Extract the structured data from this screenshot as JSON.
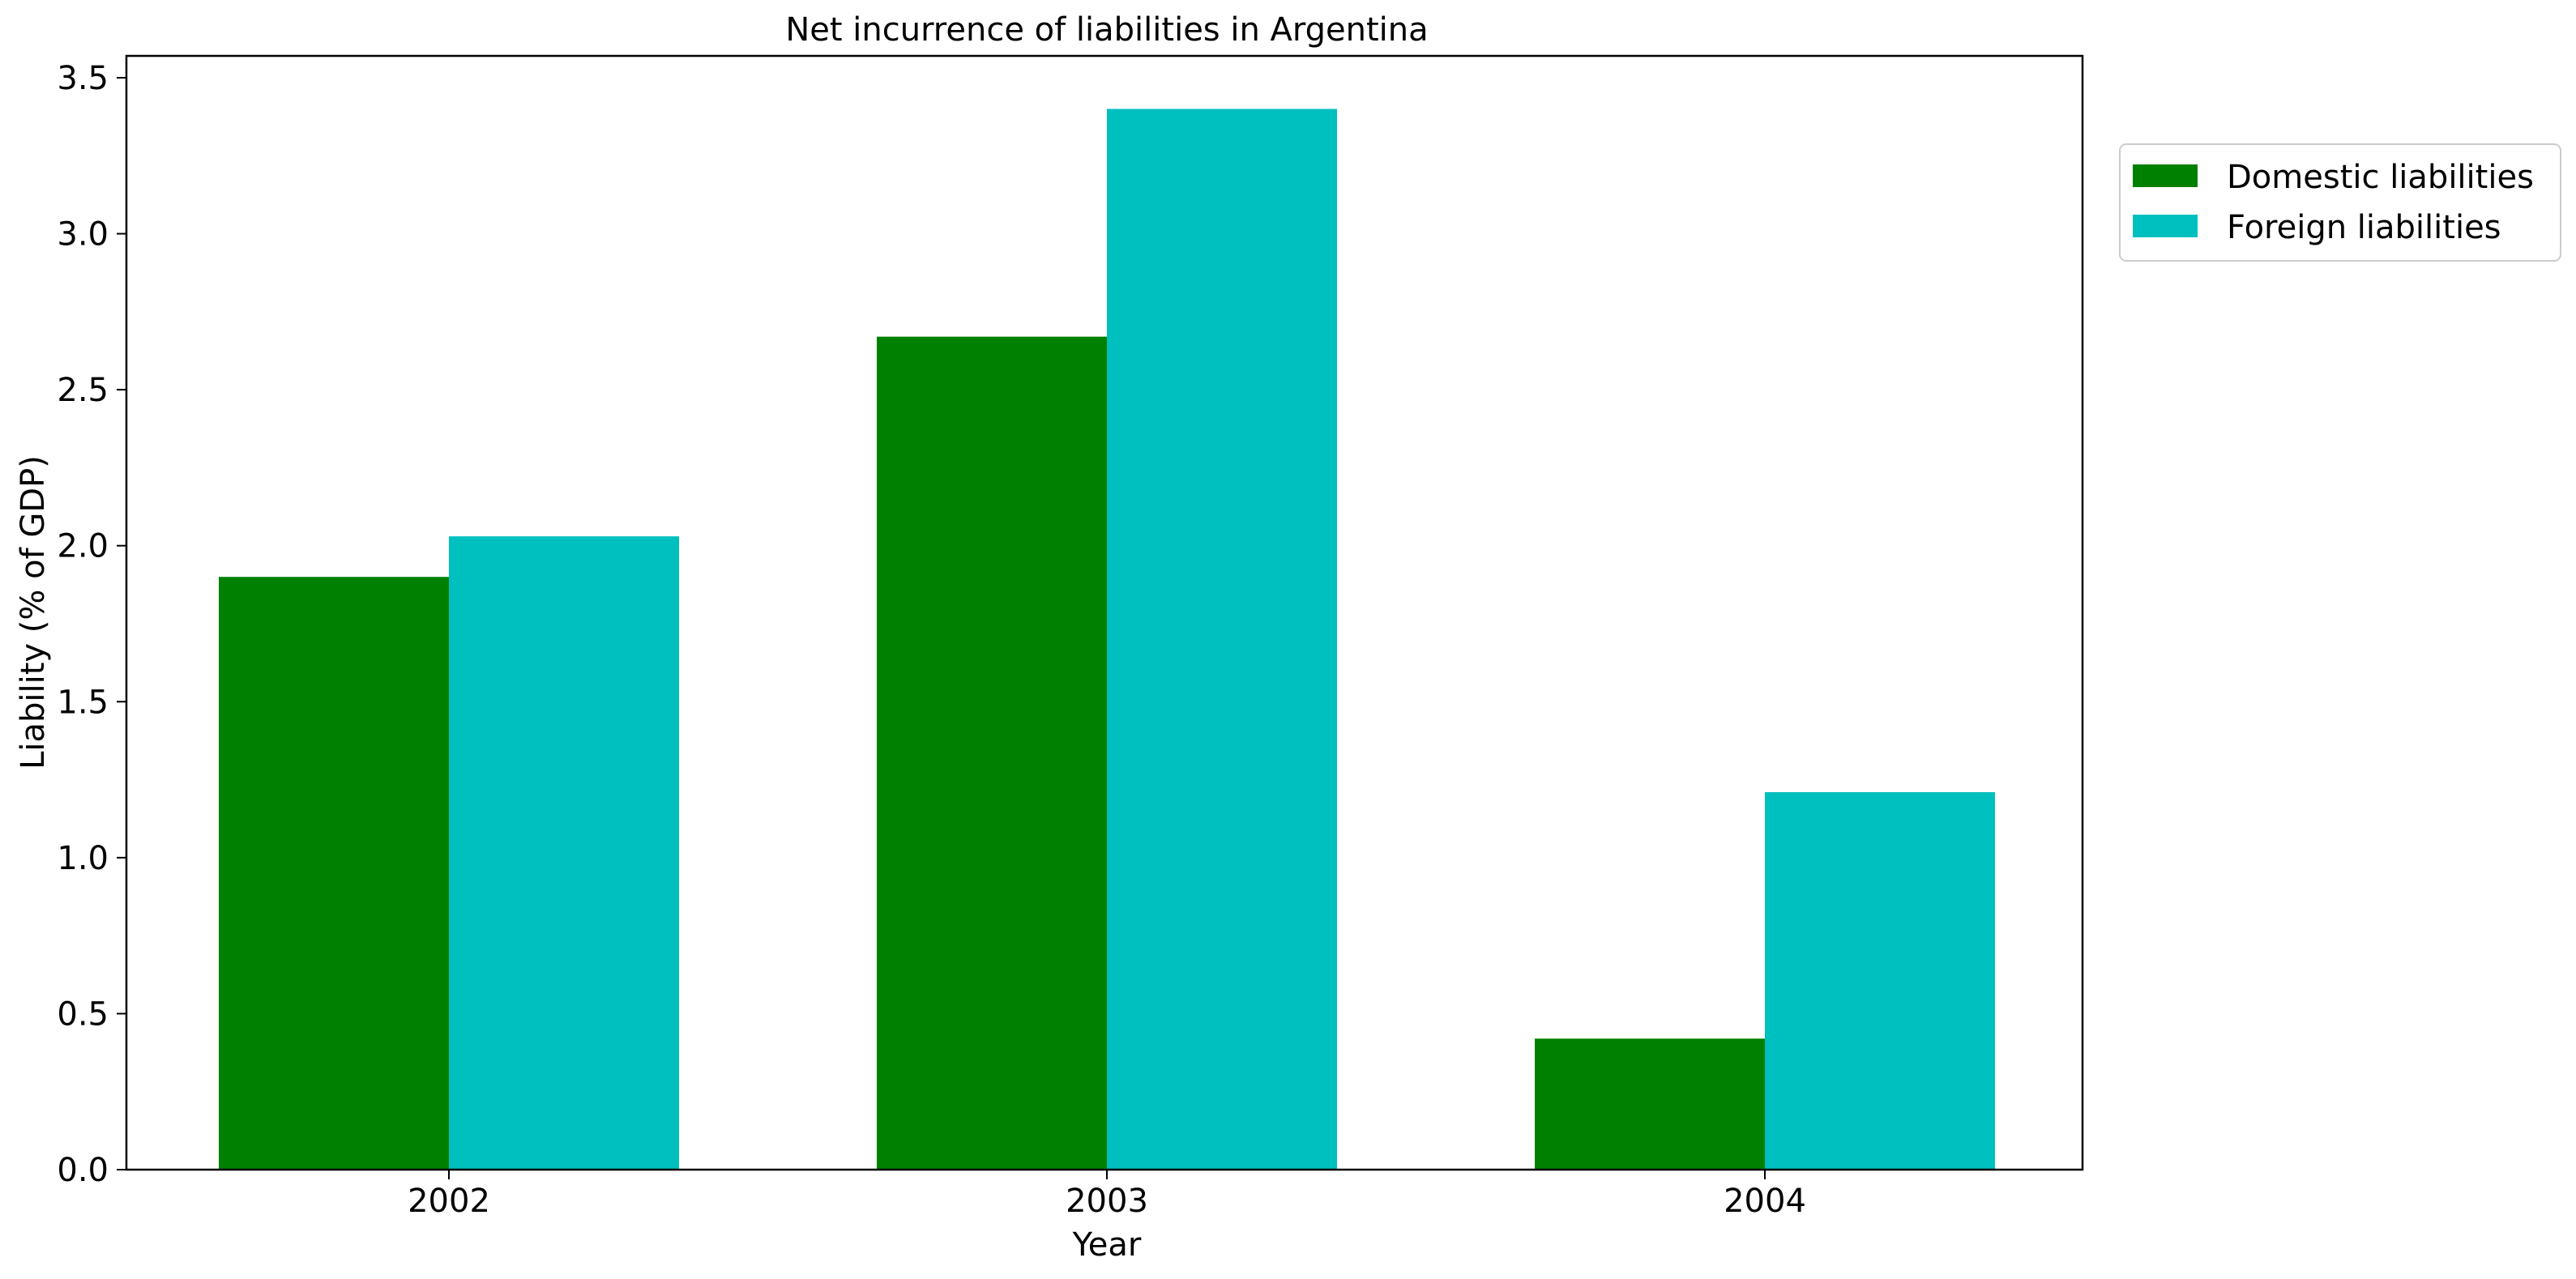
{
  "chart_data": {
    "type": "bar",
    "title": "Net incurrence of liabilities in Argentina",
    "xlabel": "Year",
    "ylabel": "Liability (% of GDP)",
    "categories": [
      "2002",
      "2003",
      "2004"
    ],
    "series": [
      {
        "name": "Domestic liabilities",
        "color": "#008000",
        "values": [
          1.9,
          2.67,
          0.42
        ]
      },
      {
        "name": "Foreign liabilities",
        "color": "#00BFBF",
        "values": [
          2.03,
          3.4,
          1.21
        ]
      }
    ],
    "ylim": [
      0,
      3.57
    ],
    "yticks": [
      0.0,
      0.5,
      1.0,
      1.5,
      2.0,
      2.5,
      3.0,
      3.5
    ],
    "ytick_labels": [
      "0.0",
      "0.5",
      "1.0",
      "1.5",
      "2.0",
      "2.5",
      "3.0",
      "3.5"
    ],
    "grid": false,
    "legend_position": "top-right-outside"
  }
}
